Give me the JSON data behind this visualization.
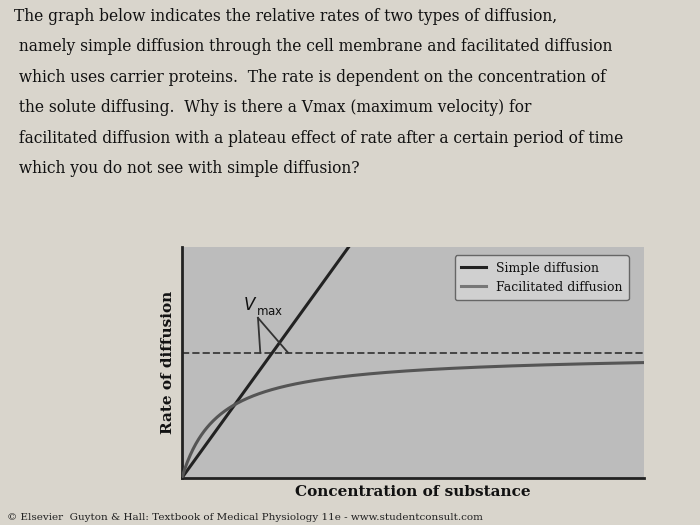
{
  "title_text_lines": [
    "The graph below indicates the relative rates of two types of diffusion,",
    " namely simple diffusion through the cell membrane and facilitated diffusion",
    " which uses carrier proteins.  The rate is dependent on the concentration of",
    " the solute diffusing.  Why is there a Vmax (maximum velocity) for",
    " facilitated diffusion with a plateau effect of rate after a certain period of time",
    " which you do not see with simple diffusion?"
  ],
  "xlabel": "Concentration of substance",
  "ylabel": "Rate of diffusion",
  "legend_labels": [
    "Simple diffusion",
    "Facilitated diffusion"
  ],
  "simple_color": "#222222",
  "facilitated_color": "#555555",
  "dashed_color": "#444444",
  "plot_bg": "#bcbcbc",
  "outer_bg": "#d9d5cc",
  "title_fontsize": 11.2,
  "axis_label_fontsize": 11,
  "legend_fontsize": 9,
  "citation": "© Elsevier  Guyton & Hall: Textbook of Medical Physiology 11e - www.studentconsult.com",
  "vmax_level": 3.5,
  "km": 0.8,
  "simple_slope": 1.8,
  "xlim": [
    0,
    10
  ],
  "ylim": [
    0,
    6.5
  ]
}
